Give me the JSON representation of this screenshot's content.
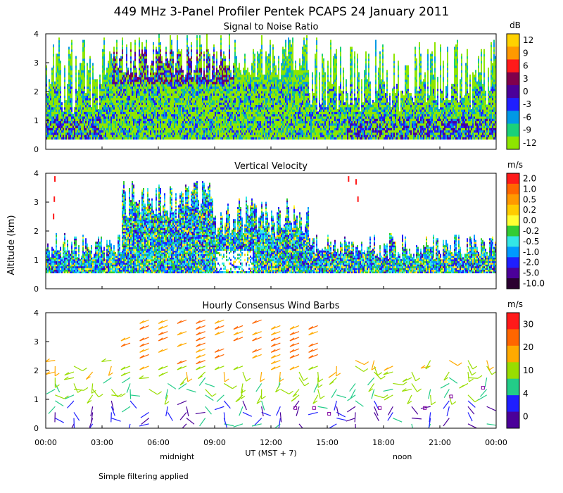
{
  "title": "449 MHz 3-Panel Profiler Pentek PCAPS 24 January 2011",
  "footer_note": "Simple filtering applied",
  "y_axis_label": "Altitude (km)",
  "x_axis": {
    "label": "UT  (MST + 7)",
    "ticks": [
      "00:00",
      "03:00",
      "06:00",
      "09:00",
      "12:00",
      "15:00",
      "18:00",
      "21:00",
      "00:00"
    ],
    "markers": [
      {
        "label": "midnight",
        "hour": 7.0
      },
      {
        "label": "noon",
        "hour": 19.0
      }
    ]
  },
  "chart_data": [
    {
      "type": "heatmap",
      "title": "Signal to Noise Ratio",
      "unit": "dB",
      "xlabel": "UT (MST + 7)",
      "ylabel": "Altitude (km)",
      "xlim": [
        0,
        24
      ],
      "ylim": [
        0,
        4
      ],
      "y_ticks": [
        "0",
        "1",
        "2",
        "3",
        "4"
      ],
      "colorbar_labels": [
        "12",
        "9",
        "6",
        "3",
        "0",
        "-3",
        "-6",
        "-9",
        "-12"
      ],
      "colorbar_colors": [
        "#ffd200",
        "#ff9900",
        "#ff1a1a",
        "#80004c",
        "#4b0099",
        "#1f1fff",
        "#0099e6",
        "#1ad17a",
        "#8ee600"
      ],
      "annotations": {
        "high_region_hours": [
          4,
          9
        ],
        "high_region_alt": [
          2.4,
          3.3
        ]
      }
    },
    {
      "type": "heatmap",
      "title": "Vertical Velocity",
      "unit": "m/s",
      "xlabel": "UT (MST + 7)",
      "ylabel": "Altitude (km)",
      "xlim": [
        0,
        24
      ],
      "ylim": [
        0,
        4
      ],
      "y_ticks": [
        "0",
        "1",
        "2",
        "3",
        "4"
      ],
      "colorbar_labels": [
        "2.0",
        "1.0",
        "0.5",
        "0.2",
        "0.0",
        "-0.2",
        "-0.5",
        "-1.0",
        "-2.0",
        "-5.0",
        "-10.0"
      ],
      "colorbar_colors": [
        "#ff1a1a",
        "#ff6600",
        "#ff9900",
        "#ffcc00",
        "#ffff33",
        "#33cc33",
        "#33e6e6",
        "#0099ff",
        "#1f1fff",
        "#4b0099",
        "#2a0030"
      ]
    },
    {
      "type": "scatter",
      "title": "Hourly Consensus Wind Barbs",
      "unit": "m/s",
      "xlabel": "UT (MST + 7)",
      "ylabel": "Altitude (km)",
      "xlim": [
        0,
        24
      ],
      "ylim": [
        0,
        4
      ],
      "y_ticks": [
        "0",
        "1",
        "2",
        "3",
        "4"
      ],
      "colorbar_labels": [
        "30",
        "20",
        "10",
        "4",
        "0"
      ],
      "colorbar_colors": [
        "#ff1a1a",
        "#ff6600",
        "#ffaa00",
        "#99dd00",
        "#22cc88",
        "#1f1fff",
        "#4b0099"
      ]
    }
  ]
}
